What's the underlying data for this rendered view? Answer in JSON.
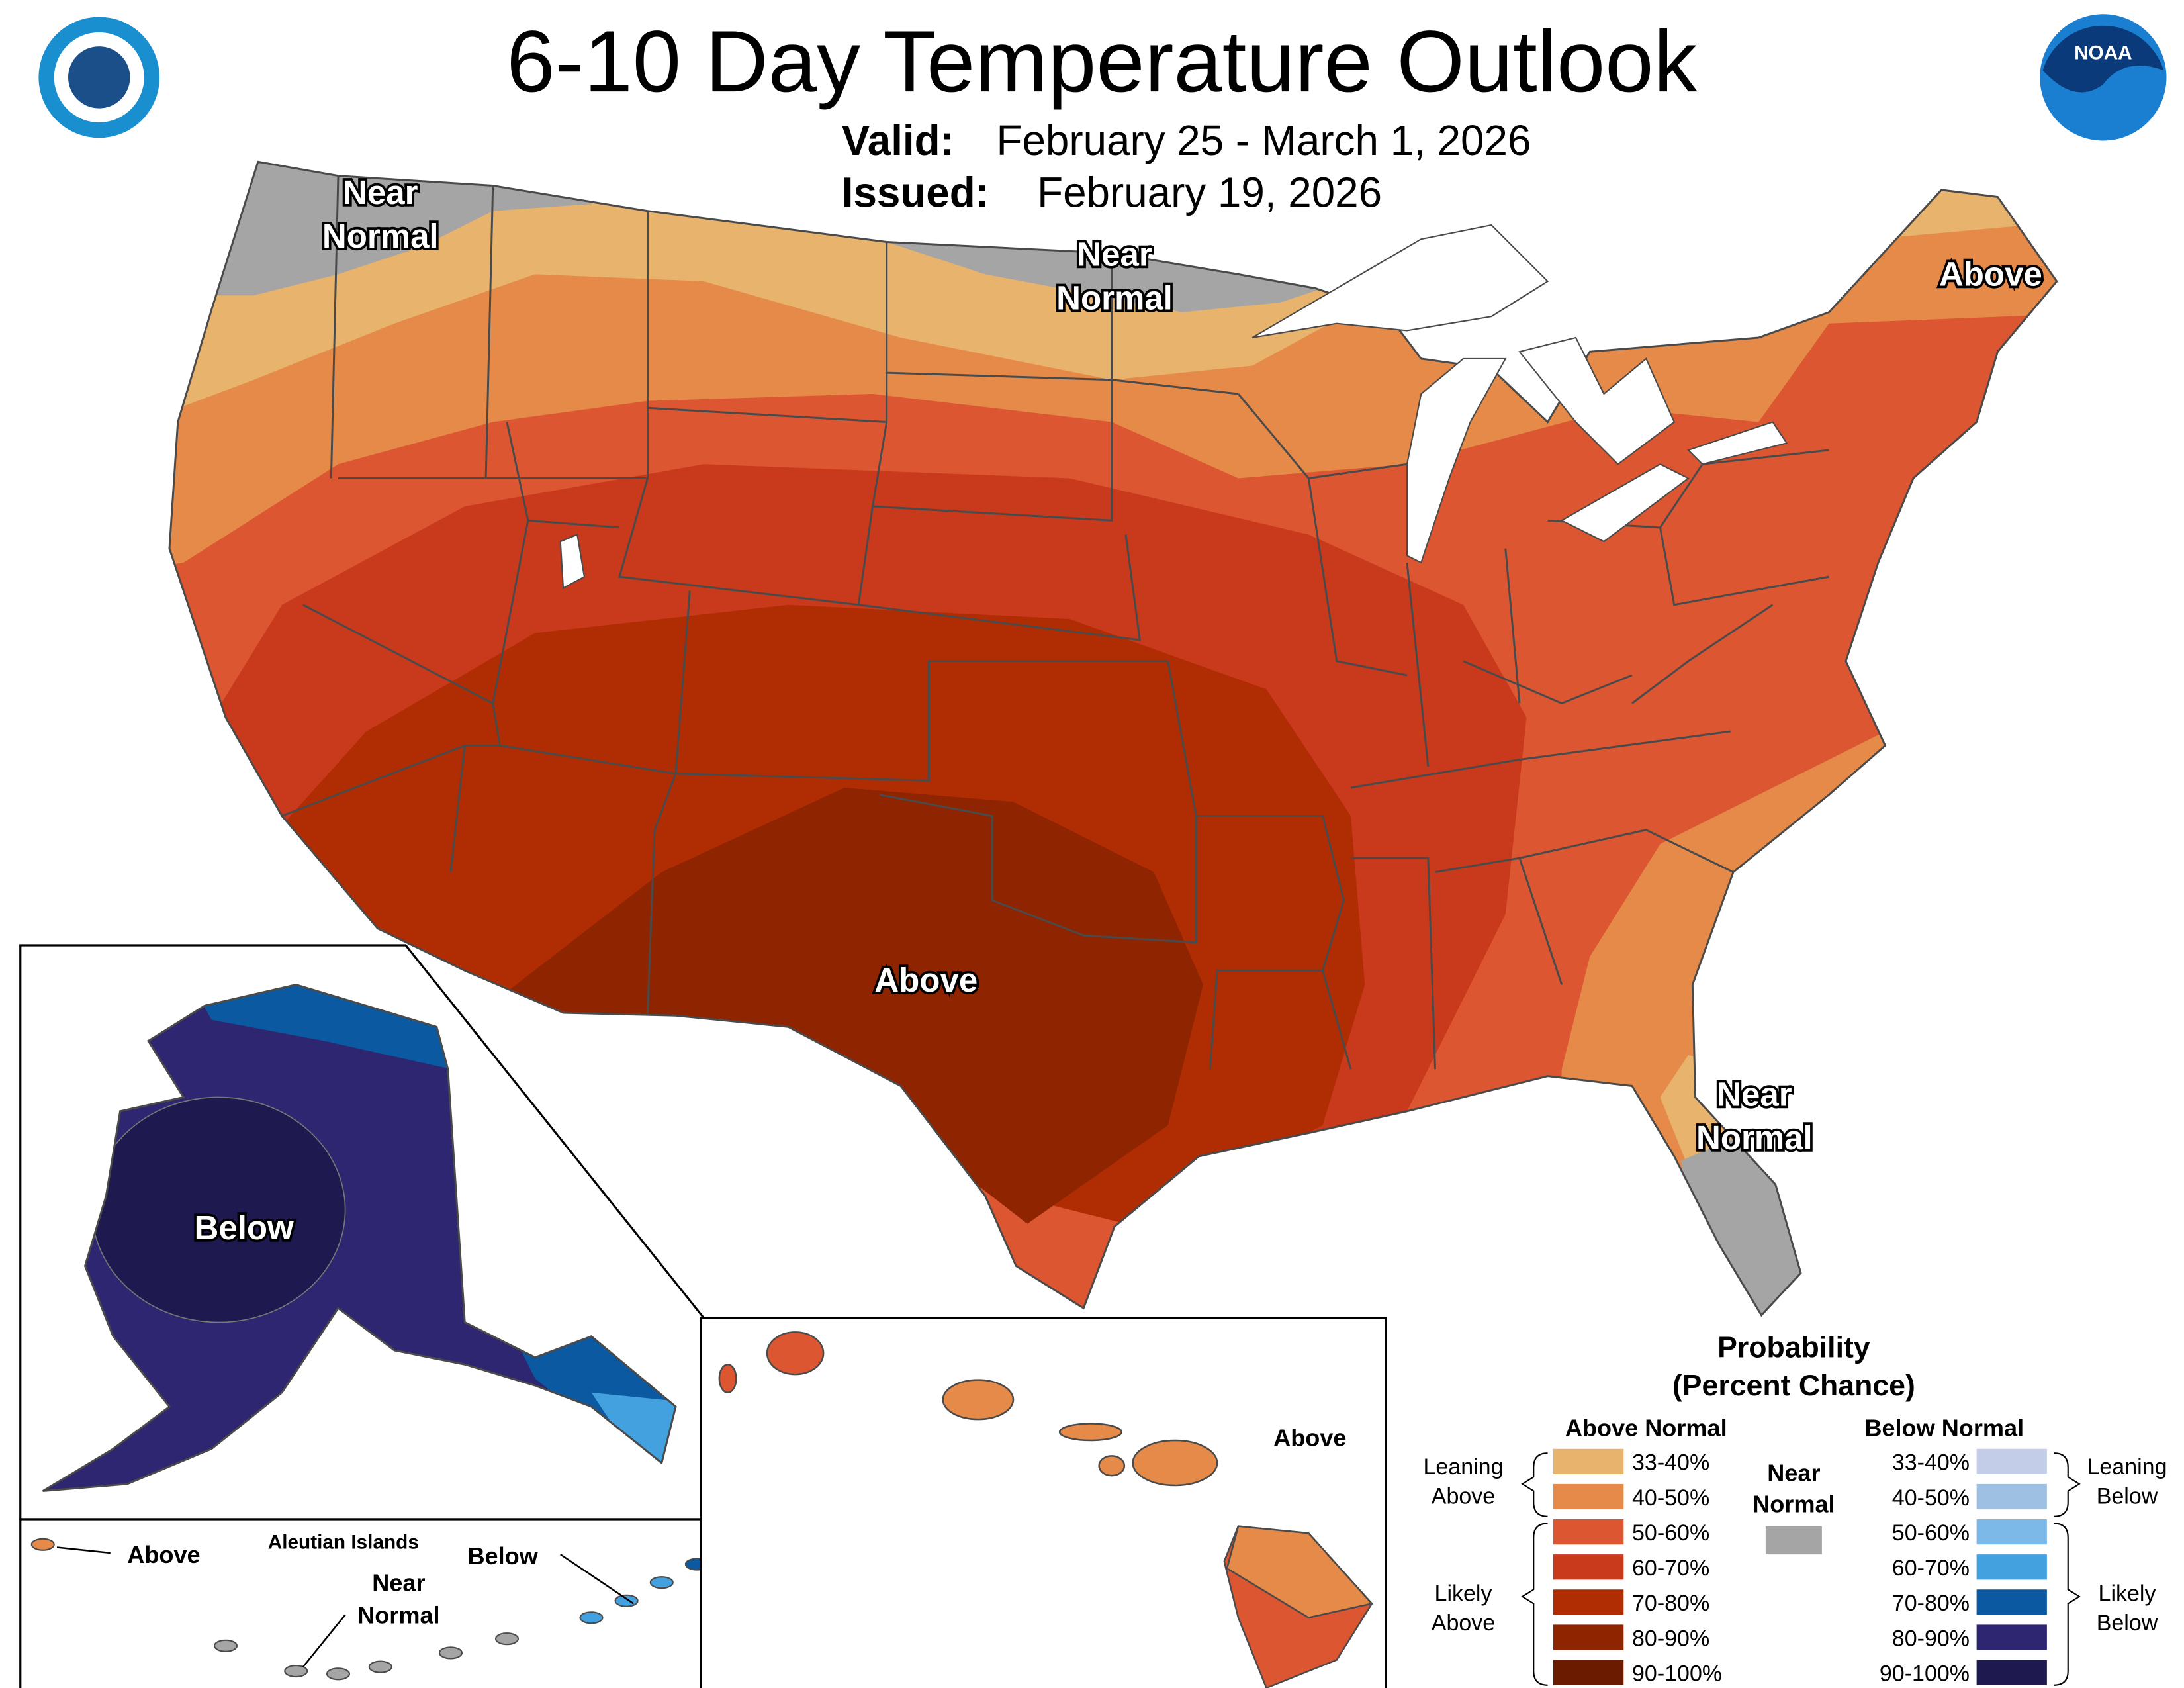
{
  "title": "6-10 Day Temperature Outlook",
  "valid": {
    "label": "Valid:",
    "value": "February 25 - March 1, 2026"
  },
  "issued": {
    "label": "Issued:",
    "value": "February 19, 2026"
  },
  "logo": "NOAA",
  "map_labels": [
    {
      "lines": [
        "Near",
        "Normal"
      ]
    },
    {
      "lines": [
        "Near",
        "Normal"
      ]
    },
    {
      "lines": [
        "Above"
      ]
    },
    {
      "lines": [
        "Above"
      ]
    },
    {
      "lines": [
        "Near",
        "Normal"
      ]
    },
    {
      "lines": [
        "Below"
      ]
    }
  ],
  "hawaii_label": "Above",
  "aleutians": {
    "title": "Aleutian Islands",
    "labels": [
      {
        "lines": [
          "Above"
        ]
      },
      {
        "lines": [
          "Near",
          "Normal"
        ]
      },
      {
        "lines": [
          "Below"
        ]
      }
    ]
  },
  "legend": {
    "title": [
      "Probability",
      "(Percent Chance)"
    ],
    "above": {
      "heading": "Above Normal",
      "bins": [
        {
          "label": "33-40%",
          "color": "#e8b36c"
        },
        {
          "label": "40-50%",
          "color": "#e58a48"
        },
        {
          "label": "50-60%",
          "color": "#dc5632"
        },
        {
          "label": "60-70%",
          "color": "#c9391c"
        },
        {
          "label": "70-80%",
          "color": "#b02d03"
        },
        {
          "label": "80-90%",
          "color": "#8e2400"
        },
        {
          "label": "90-100%",
          "color": "#6a1b00"
        }
      ],
      "leaning": [
        "Leaning",
        "Above"
      ],
      "likely": [
        "Likely",
        "Above"
      ]
    },
    "below": {
      "heading": "Below Normal",
      "bins": [
        {
          "label": "33-40%",
          "color": "#c3cde8"
        },
        {
          "label": "40-50%",
          "color": "#9ec0e2"
        },
        {
          "label": "50-60%",
          "color": "#7cb8e8"
        },
        {
          "label": "60-70%",
          "color": "#43a1e0"
        },
        {
          "label": "70-80%",
          "color": "#0b5aa1"
        },
        {
          "label": "80-90%",
          "color": "#2e2670"
        },
        {
          "label": "90-100%",
          "color": "#1e1a50"
        }
      ],
      "leaning": [
        "Leaning",
        "Below"
      ],
      "likely": [
        "Likely",
        "Below"
      ]
    },
    "near": {
      "lines": [
        "Near",
        "Normal"
      ],
      "color": "#a5a5a5"
    }
  }
}
